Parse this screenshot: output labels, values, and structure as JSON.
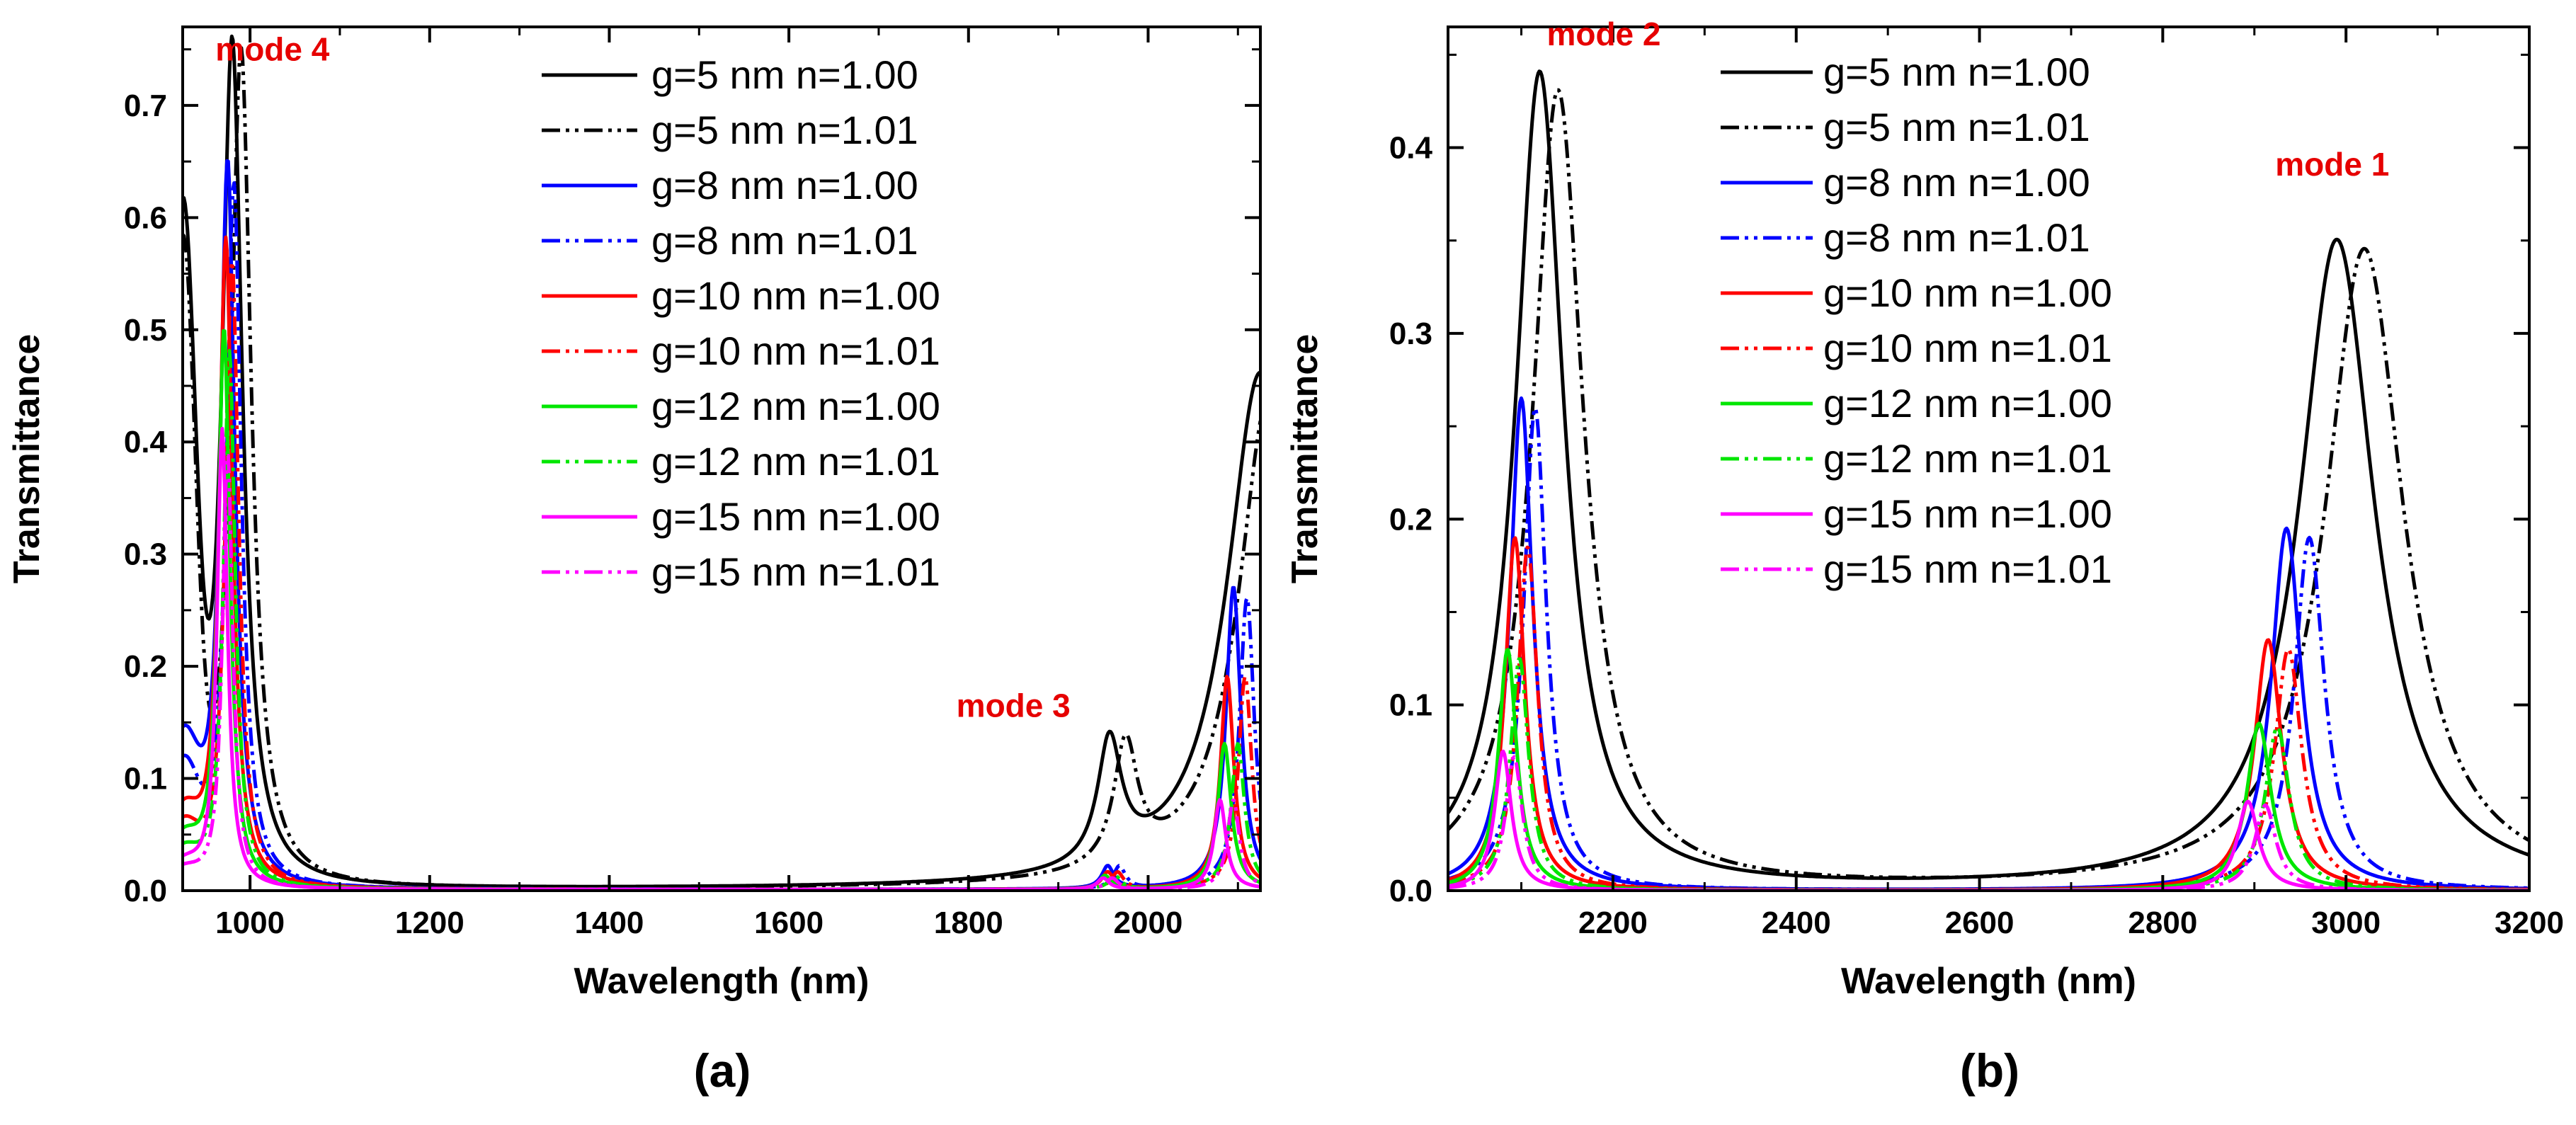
{
  "colors": {
    "black": "#000000",
    "blue": "#0000ff",
    "red": "#ff0000",
    "green": "#00e600",
    "magenta": "#ff00ff",
    "annotation": "#e60000"
  },
  "legend": [
    {
      "label": "g=5 nm n=1.00",
      "color": "#000000",
      "dash": "solid"
    },
    {
      "label": "g=5 nm n=1.01",
      "color": "#000000",
      "dash": "dashdotdot"
    },
    {
      "label": "g=8 nm n=1.00",
      "color": "#0000ff",
      "dash": "solid"
    },
    {
      "label": "g=8 nm n=1.01",
      "color": "#0000ff",
      "dash": "dashdotdot"
    },
    {
      "label": "g=10 nm n=1.00",
      "color": "#ff0000",
      "dash": "solid"
    },
    {
      "label": "g=10 nm n=1.01",
      "color": "#ff0000",
      "dash": "dashdotdot"
    },
    {
      "label": "g=12 nm n=1.00",
      "color": "#00e600",
      "dash": "solid"
    },
    {
      "label": "g=12 nm n=1.01",
      "color": "#00e600",
      "dash": "dashdotdot"
    },
    {
      "label": "g=15 nm n=1.00",
      "color": "#ff00ff",
      "dash": "solid"
    },
    {
      "label": "g=15 nm n=1.01",
      "color": "#ff00ff",
      "dash": "dashdotdot"
    }
  ],
  "chart_data": [
    {
      "type": "line",
      "panel": "(a)",
      "xlabel": "Wavelength (nm)",
      "ylabel": "Transmittance",
      "xlim": [
        925,
        2125
      ],
      "ylim": [
        0,
        0.77
      ],
      "xticks": [
        1000,
        1200,
        1400,
        1600,
        1800,
        2000
      ],
      "yticks": [
        0.0,
        0.1,
        0.2,
        0.3,
        0.4,
        0.5,
        0.6,
        0.7
      ],
      "legend_position": "top-center",
      "annotations": [
        {
          "text": "mode 4",
          "x": 1025,
          "y": 0.74
        },
        {
          "text": "mode 3",
          "x": 1850,
          "y": 0.155
        }
      ],
      "series": [
        {
          "name": "g=5 nm n=1.00",
          "baseline": 0.001,
          "base": {
            "at": 925,
            "value": 0.57,
            "w": 20
          },
          "peaks": [
            {
              "c": 980,
              "h": 0.76,
              "w": 14
            },
            {
              "c": 1957,
              "h": 0.11,
              "w": 16
            },
            {
              "c": 2125,
              "h": 0.46,
              "w": 45
            }
          ]
        },
        {
          "name": "g=5 nm n=1.01",
          "baseline": 0.001,
          "base": {
            "at": 925,
            "value": 0.55,
            "w": 20
          },
          "peaks": [
            {
              "c": 990,
              "h": 0.75,
              "w": 14
            },
            {
              "c": 1975,
              "h": 0.11,
              "w": 16
            },
            {
              "c": 2135,
              "h": 0.44,
              "w": 42
            }
          ]
        },
        {
          "name": "g=8 nm n=1.00",
          "baseline": 0.001,
          "base": {
            "at": 925,
            "value": 0.12,
            "w": 25
          },
          "peaks": [
            {
              "c": 975,
              "h": 0.65,
              "w": 10
            },
            {
              "c": 1955,
              "h": 0.02,
              "w": 8
            },
            {
              "c": 2095,
              "h": 0.27,
              "w": 10
            }
          ]
        },
        {
          "name": "g=8 nm n=1.01",
          "baseline": 0.001,
          "base": {
            "at": 925,
            "value": 0.1,
            "w": 25
          },
          "peaks": [
            {
              "c": 982,
              "h": 0.63,
              "w": 10
            },
            {
              "c": 1968,
              "h": 0.02,
              "w": 8
            },
            {
              "c": 2110,
              "h": 0.26,
              "w": 10
            }
          ]
        },
        {
          "name": "g=10 nm n=1.00",
          "baseline": 0.001,
          "base": {
            "at": 925,
            "value": 0.06,
            "w": 25
          },
          "peaks": [
            {
              "c": 973,
              "h": 0.58,
              "w": 9
            },
            {
              "c": 1955,
              "h": 0.015,
              "w": 8
            },
            {
              "c": 2088,
              "h": 0.19,
              "w": 9
            }
          ]
        },
        {
          "name": "g=10 nm n=1.01",
          "baseline": 0.001,
          "base": {
            "at": 925,
            "value": 0.05,
            "w": 25
          },
          "peaks": [
            {
              "c": 980,
              "h": 0.56,
              "w": 9
            },
            {
              "c": 1966,
              "h": 0.015,
              "w": 8
            },
            {
              "c": 2108,
              "h": 0.19,
              "w": 9
            }
          ]
        },
        {
          "name": "g=12 nm n=1.00",
          "baseline": 0.001,
          "base": {
            "at": 925,
            "value": 0.04,
            "w": 25
          },
          "peaks": [
            {
              "c": 971,
              "h": 0.5,
              "w": 8
            },
            {
              "c": 1952,
              "h": 0.012,
              "w": 8
            },
            {
              "c": 2085,
              "h": 0.13,
              "w": 9
            }
          ]
        },
        {
          "name": "g=12 nm n=1.01",
          "baseline": 0.001,
          "base": {
            "at": 925,
            "value": 0.03,
            "w": 25
          },
          "peaks": [
            {
              "c": 977,
              "h": 0.48,
              "w": 8
            },
            {
              "c": 1963,
              "h": 0.012,
              "w": 8
            },
            {
              "c": 2100,
              "h": 0.13,
              "w": 9
            }
          ]
        },
        {
          "name": "g=15 nm n=1.00",
          "baseline": 0.001,
          "base": {
            "at": 925,
            "value": 0.02,
            "w": 25
          },
          "peaks": [
            {
              "c": 969,
              "h": 0.41,
              "w": 7
            },
            {
              "c": 1950,
              "h": 0.01,
              "w": 8
            },
            {
              "c": 2080,
              "h": 0.08,
              "w": 8
            }
          ]
        },
        {
          "name": "g=15 nm n=1.01",
          "baseline": 0.001,
          "base": {
            "at": 925,
            "value": 0.015,
            "w": 25
          },
          "peaks": [
            {
              "c": 975,
              "h": 0.39,
              "w": 7
            },
            {
              "c": 1960,
              "h": 0.01,
              "w": 8
            },
            {
              "c": 2095,
              "h": 0.08,
              "w": 8
            }
          ]
        }
      ]
    },
    {
      "type": "line",
      "panel": "(b)",
      "xlabel": "Wavelength (nm)",
      "ylabel": "Transmittance",
      "xlim": [
        2020,
        3200
      ],
      "ylim": [
        0,
        0.465
      ],
      "xticks": [
        2200,
        2400,
        2600,
        2800,
        3000,
        3200
      ],
      "yticks": [
        0.0,
        0.1,
        0.2,
        0.3,
        0.4
      ],
      "legend_position": "top-center",
      "annotations": [
        {
          "text": "mode 2",
          "x": 2190,
          "y": 0.455
        },
        {
          "text": "mode 1",
          "x": 2985,
          "y": 0.385
        }
      ],
      "series": [
        {
          "name": "g=5 nm n=1.00",
          "baseline": 0.0,
          "peaks": [
            {
              "c": 2120,
              "h": 0.44,
              "w": 32
            },
            {
              "c": 2990,
              "h": 0.35,
              "w": 50
            }
          ]
        },
        {
          "name": "g=5 nm n=1.01",
          "baseline": 0.0,
          "peaks": [
            {
              "c": 2140,
              "h": 0.43,
              "w": 34
            },
            {
              "c": 3020,
              "h": 0.345,
              "w": 52
            }
          ]
        },
        {
          "name": "g=8 nm n=1.00",
          "baseline": 0.0,
          "peaks": [
            {
              "c": 2100,
              "h": 0.265,
              "w": 15
            },
            {
              "c": 2935,
              "h": 0.195,
              "w": 20
            }
          ]
        },
        {
          "name": "g=8 nm n=1.01",
          "baseline": 0.0,
          "peaks": [
            {
              "c": 2115,
              "h": 0.26,
              "w": 15
            },
            {
              "c": 2960,
              "h": 0.19,
              "w": 20
            }
          ]
        },
        {
          "name": "g=10 nm n=1.00",
          "baseline": 0.0,
          "peaks": [
            {
              "c": 2093,
              "h": 0.19,
              "w": 13
            },
            {
              "c": 2915,
              "h": 0.135,
              "w": 18
            }
          ]
        },
        {
          "name": "g=10 nm n=1.01",
          "baseline": 0.0,
          "peaks": [
            {
              "c": 2107,
              "h": 0.185,
              "w": 13
            },
            {
              "c": 2937,
              "h": 0.13,
              "w": 18
            }
          ]
        },
        {
          "name": "g=12 nm n=1.00",
          "baseline": 0.0,
          "peaks": [
            {
              "c": 2085,
              "h": 0.13,
              "w": 12
            },
            {
              "c": 2905,
              "h": 0.09,
              "w": 16
            }
          ]
        },
        {
          "name": "g=12 nm n=1.01",
          "baseline": 0.0,
          "peaks": [
            {
              "c": 2098,
              "h": 0.125,
              "w": 12
            },
            {
              "c": 2925,
              "h": 0.088,
              "w": 16
            }
          ]
        },
        {
          "name": "g=15 nm n=1.00",
          "baseline": 0.0,
          "peaks": [
            {
              "c": 2080,
              "h": 0.075,
              "w": 11
            },
            {
              "c": 2893,
              "h": 0.048,
              "w": 14
            }
          ]
        },
        {
          "name": "g=15 nm n=1.01",
          "baseline": 0.0,
          "peaks": [
            {
              "c": 2092,
              "h": 0.072,
              "w": 11
            },
            {
              "c": 2912,
              "h": 0.046,
              "w": 14
            }
          ]
        }
      ]
    }
  ]
}
